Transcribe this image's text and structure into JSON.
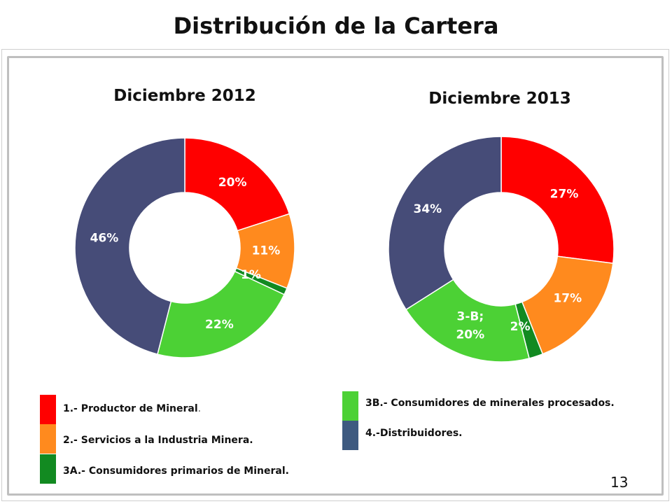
{
  "page": {
    "title": "Distribución de la Cartera",
    "page_number": "13"
  },
  "chart_data": [
    {
      "type": "pie",
      "subtype": "donut",
      "title": "Diciembre 2012",
      "slices": [
        {
          "label": "1.- Productor de Mineral.",
          "value": 20,
          "display": "20%",
          "color": "#FF0000"
        },
        {
          "label": "2.- Servicios a la Industria Minera.",
          "value": 11,
          "display": "11%",
          "color": "#FF8A1E"
        },
        {
          "label": "3A.- Consumidores primarios de Mineral.",
          "value": 1,
          "display": "1%",
          "color": "#128A21"
        },
        {
          "label": "3B.- Consumidores de minerales procesados.",
          "value": 22,
          "display": "22%",
          "color": "#4CD135"
        },
        {
          "label": "4.-Distribuidores.",
          "value": 46,
          "display": "46%",
          "color": "#464C78"
        }
      ]
    },
    {
      "type": "pie",
      "subtype": "donut",
      "title": "Diciembre 2013",
      "slices": [
        {
          "label": "1.- Productor de Mineral.",
          "value": 27,
          "display": "27%",
          "color": "#FF0000"
        },
        {
          "label": "2.- Servicios a la Industria Minera.",
          "value": 17,
          "display": "17%",
          "color": "#FF8A1E"
        },
        {
          "label": "3A.- Consumidores primarios de Mineral.",
          "value": 2,
          "display": "2%",
          "color": "#128A21"
        },
        {
          "label": "3B.- Consumidores de minerales procesados.",
          "value": 20,
          "display": "3-B;\n20%",
          "color": "#4CD135"
        },
        {
          "label": "4.-Distribuidores.",
          "value": 34,
          "display": "34%",
          "color": "#464C78"
        }
      ]
    }
  ],
  "legend": [
    {
      "text": "1.- Productor de Mineral",
      "suffix": ".",
      "color": "#FF0000"
    },
    {
      "text": "2.- Servicios a la Industria Minera.",
      "suffix": "",
      "color": "#FF8A1E"
    },
    {
      "text": "3A.- Consumidores primarios de Mineral.",
      "suffix": "",
      "color": "#128A21"
    },
    {
      "text": "3B.- Consumidores de minerales procesados.",
      "suffix": "",
      "color": "#4CD135"
    },
    {
      "text": "4.-Distribuidores.",
      "suffix": "",
      "color": "#3E5A80"
    }
  ]
}
